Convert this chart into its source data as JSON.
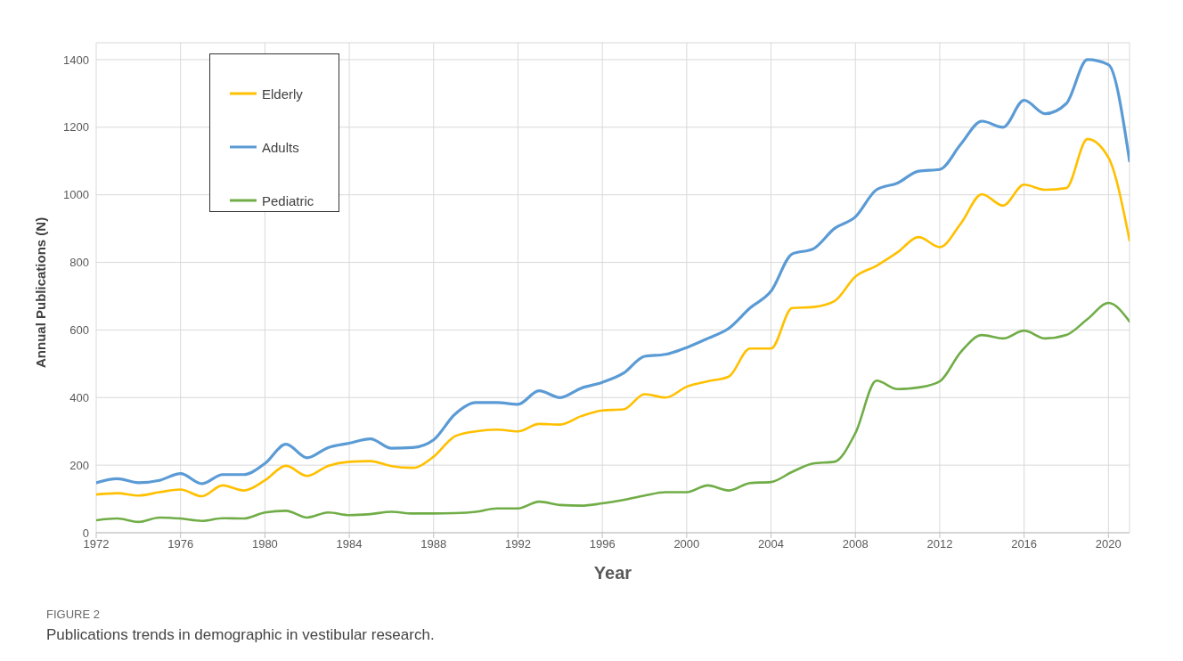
{
  "chart_data": {
    "type": "line",
    "xlabel": "Year",
    "ylabel": "Annual Publications (N)",
    "x": [
      1972,
      1973,
      1974,
      1975,
      1976,
      1977,
      1978,
      1979,
      1980,
      1981,
      1982,
      1983,
      1984,
      1985,
      1986,
      1987,
      1988,
      1989,
      1990,
      1991,
      1992,
      1993,
      1994,
      1995,
      1996,
      1997,
      1998,
      1999,
      2000,
      2001,
      2002,
      2003,
      2004,
      2005,
      2006,
      2007,
      2008,
      2009,
      2010,
      2011,
      2012,
      2013,
      2014,
      2015,
      2016,
      2017,
      2018,
      2019,
      2020,
      2021
    ],
    "series": [
      {
        "name": "Elderly",
        "color": "#ffc000",
        "values": [
          113,
          117,
          110,
          120,
          128,
          108,
          140,
          125,
          155,
          198,
          168,
          198,
          210,
          212,
          197,
          192,
          225,
          285,
          300,
          305,
          300,
          322,
          320,
          345,
          362,
          365,
          410,
          400,
          432,
          448,
          462,
          545,
          545,
          665,
          668,
          685,
          758,
          790,
          830,
          875,
          845,
          915,
          1002,
          968,
          1030,
          1015,
          1020,
          1165,
          1110,
          865
        ]
      },
      {
        "name": "Adults",
        "color": "#5b9bd5",
        "values": [
          148,
          160,
          148,
          155,
          175,
          145,
          172,
          172,
          205,
          262,
          222,
          252,
          265,
          278,
          250,
          252,
          275,
          350,
          385,
          385,
          380,
          420,
          400,
          428,
          445,
          472,
          522,
          528,
          548,
          575,
          605,
          665,
          715,
          825,
          840,
          900,
          935,
          1015,
          1035,
          1070,
          1075,
          1150,
          1218,
          1200,
          1280,
          1240,
          1270,
          1400,
          1385,
          1100
        ]
      },
      {
        "name": "Pediatric",
        "color": "#70ad47",
        "values": [
          37,
          42,
          32,
          45,
          42,
          35,
          43,
          42,
          60,
          65,
          45,
          60,
          52,
          55,
          62,
          57,
          57,
          58,
          62,
          72,
          72,
          92,
          82,
          80,
          87,
          97,
          110,
          120,
          120,
          140,
          125,
          147,
          150,
          180,
          205,
          210,
          295,
          450,
          425,
          430,
          448,
          535,
          585,
          575,
          598,
          575,
          585,
          632,
          680,
          625
        ]
      }
    ],
    "xlim": [
      1972,
      2021
    ],
    "xticks": [
      1972,
      1976,
      1980,
      1984,
      1988,
      1992,
      1996,
      2000,
      2004,
      2008,
      2012,
      2016,
      2020
    ],
    "ylim": [
      0,
      1450
    ],
    "yticks": [
      0,
      200,
      400,
      600,
      800,
      1000,
      1200,
      1400
    ],
    "grid": true,
    "legend": "top left",
    "marker": "none",
    "line_style": "solid",
    "annotations": [
      "FIGURE 2",
      "Publications trends in demographic in vestibular research."
    ]
  }
}
